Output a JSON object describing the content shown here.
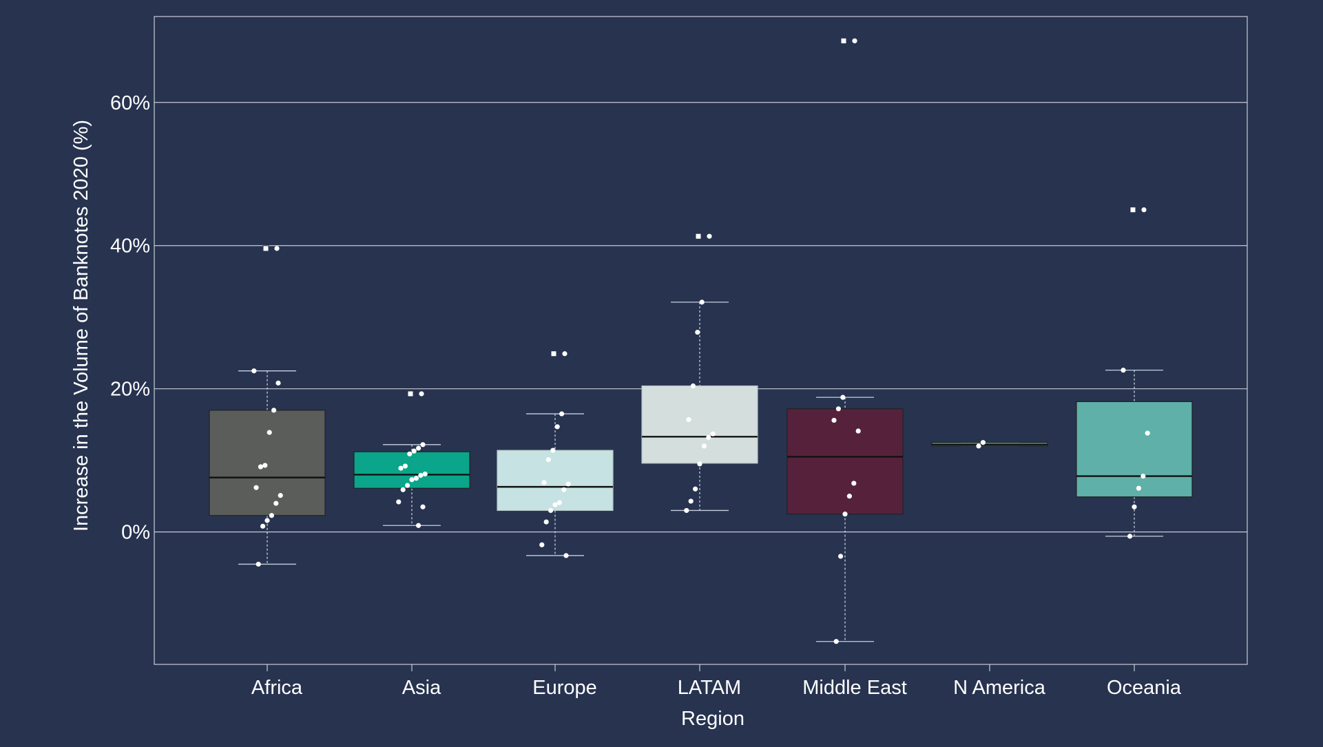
{
  "chart_data": {
    "type": "box",
    "xlabel": "Region",
    "ylabel": "Increase in the Volume of Banknotes 2020 (%)",
    "ylim": [
      -18.5,
      72
    ],
    "yticks": [
      0,
      20,
      40,
      60
    ],
    "ytick_labels": [
      "0%",
      "20%",
      "40%",
      "60%"
    ],
    "grid": "horizontal",
    "categories": [
      "Africa",
      "Asia",
      "Europe",
      "LATAM",
      "Middle East",
      "N America",
      "Oceania"
    ],
    "colors": {
      "background": "#27334f",
      "Africa": "#5b5d5a",
      "Asia": "#0aa58a",
      "Europe": "#c6e2e2",
      "LATAM": "#d3dedd",
      "Middle East": "#56223b",
      "N America": "#3aa89b",
      "Oceania": "#5fb0a8"
    },
    "boxes": [
      {
        "category": "Africa",
        "q1": 2.3,
        "median": 7.6,
        "q3": 17.0,
        "whisker_low": -4.5,
        "whisker_high": 22.5,
        "points": [
          22.5,
          20.8,
          17.0,
          13.9,
          9.3,
          9.1,
          6.2,
          5.1,
          4.0,
          2.3,
          1.6,
          0.8,
          -4.5
        ],
        "outliers": [
          39.6
        ]
      },
      {
        "category": "Asia",
        "q1": 6.1,
        "median": 8.0,
        "q3": 11.2,
        "whisker_low": 0.9,
        "whisker_high": 12.2,
        "points": [
          12.2,
          11.7,
          11.3,
          10.9,
          9.2,
          8.9,
          8.1,
          7.9,
          7.5,
          7.3,
          6.5,
          5.9,
          4.2,
          3.5,
          0.9
        ],
        "outliers": [
          19.3
        ]
      },
      {
        "category": "Europe",
        "q1": 3.0,
        "median": 6.3,
        "q3": 11.4,
        "whisker_low": -3.3,
        "whisker_high": 16.5,
        "points": [
          16.5,
          14.7,
          11.4,
          10.1,
          6.9,
          6.7,
          5.9,
          4.1,
          3.8,
          3.0,
          1.4,
          -1.8,
          -3.3
        ],
        "outliers": [
          24.9
        ]
      },
      {
        "category": "LATAM",
        "q1": 9.6,
        "median": 13.3,
        "q3": 20.4,
        "whisker_low": 3.0,
        "whisker_high": 32.1,
        "points": [
          32.1,
          27.9,
          20.4,
          15.7,
          13.7,
          13.2,
          12.0,
          9.5,
          6.0,
          4.3,
          3.0
        ],
        "outliers": [
          41.3
        ]
      },
      {
        "category": "Middle East",
        "q1": 2.5,
        "median": 10.5,
        "q3": 17.2,
        "whisker_low": -15.3,
        "whisker_high": 18.8,
        "points": [
          18.8,
          17.2,
          15.6,
          14.1,
          6.8,
          5.0,
          2.5,
          -3.4,
          -15.3
        ],
        "outliers": [
          68.6
        ]
      },
      {
        "category": "N America",
        "q1": 12.0,
        "median": 12.2,
        "q3": 12.5,
        "whisker_low": 12.0,
        "whisker_high": 12.5,
        "points": [
          12.5,
          12.0
        ],
        "outliers": []
      },
      {
        "category": "Oceania",
        "q1": 4.9,
        "median": 7.8,
        "q3": 18.2,
        "whisker_low": -0.6,
        "whisker_high": 22.6,
        "points": [
          22.6,
          13.8,
          7.8,
          6.1,
          3.5,
          -0.6
        ],
        "outliers": [
          45.0
        ]
      }
    ]
  }
}
